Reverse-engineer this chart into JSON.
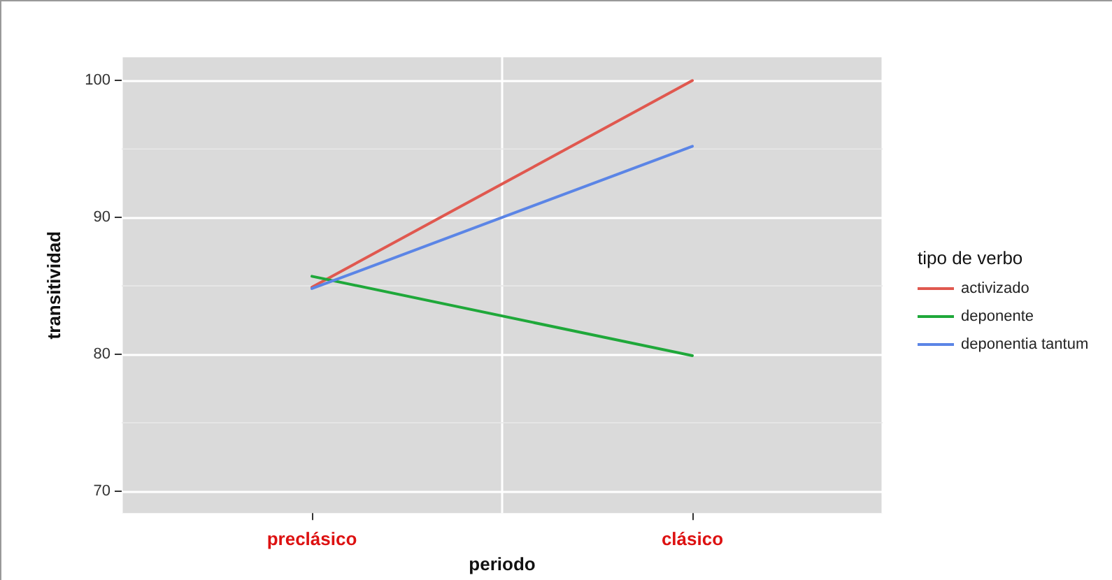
{
  "chart_data": {
    "type": "line",
    "xlabel": "periodo",
    "ylabel": "transitividad",
    "legend_title": "tipo de verbo",
    "categories": [
      "preclásico",
      "clásico"
    ],
    "series": [
      {
        "name": "activizado",
        "color": "#e0584f",
        "values": [
          84.9,
          100
        ]
      },
      {
        "name": "deponente",
        "color": "#1fa83a",
        "values": [
          85.7,
          79.9
        ]
      },
      {
        "name": "deponentia tantum",
        "color": "#5b85e6",
        "values": [
          84.8,
          95.2
        ]
      }
    ],
    "ylim": [
      68.4,
      101.7
    ],
    "yticks": [
      70,
      80,
      90,
      100
    ],
    "grid": true,
    "legend": "right",
    "marker": "none",
    "line_style": "solid"
  }
}
